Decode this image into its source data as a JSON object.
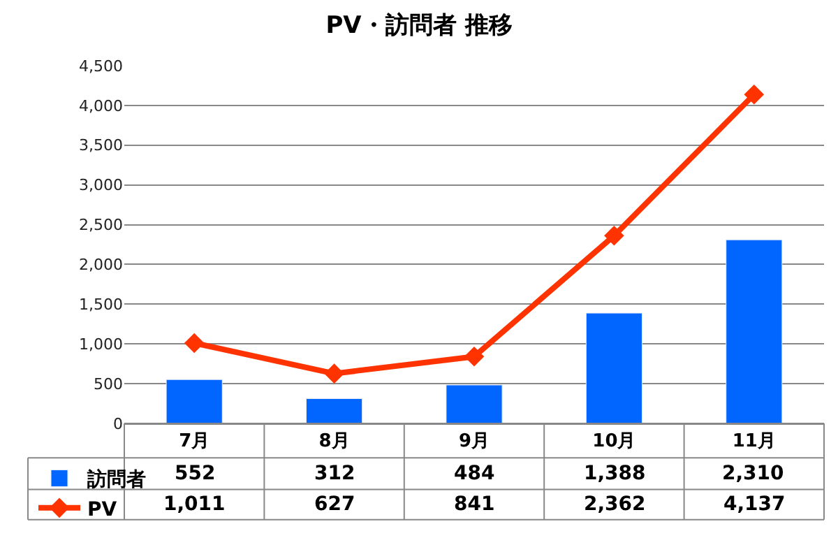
{
  "chart_data": {
    "type": "bar",
    "title": "PV・訪問者 推移",
    "categories": [
      "7月",
      "8月",
      "9月",
      "10月",
      "11月"
    ],
    "series": [
      {
        "name": "訪問者",
        "color": "#0066ff",
        "values": [
          552,
          312,
          484,
          1388,
          2310
        ],
        "value_labels": [
          "552",
          "312",
          "484",
          "1,388",
          "2,310"
        ]
      },
      {
        "name": "PV",
        "type": "line",
        "color": "#ff3300",
        "marker": "diamond",
        "values": [
          1011,
          627,
          841,
          2362,
          4137
        ],
        "value_labels": [
          "1,011",
          "627",
          "841",
          "2,362",
          "4,137"
        ]
      }
    ],
    "ylim": [
      0,
      4500
    ],
    "yticks": [
      0,
      500,
      {
        "value": 1000,
        "label": "1,000"
      },
      {
        "value": 1500,
        "label": "1,500"
      },
      {
        "value": 2000,
        "label": "2,000"
      },
      {
        "value": 2500,
        "label": "2,500"
      },
      {
        "value": 3000,
        "label": "3,000"
      },
      {
        "value": 3500,
        "label": "3,500"
      },
      {
        "value": 4000,
        "label": "4,000"
      },
      {
        "value": 4500,
        "label": "4,500"
      }
    ],
    "grid": "y",
    "legend": "bottom left"
  }
}
